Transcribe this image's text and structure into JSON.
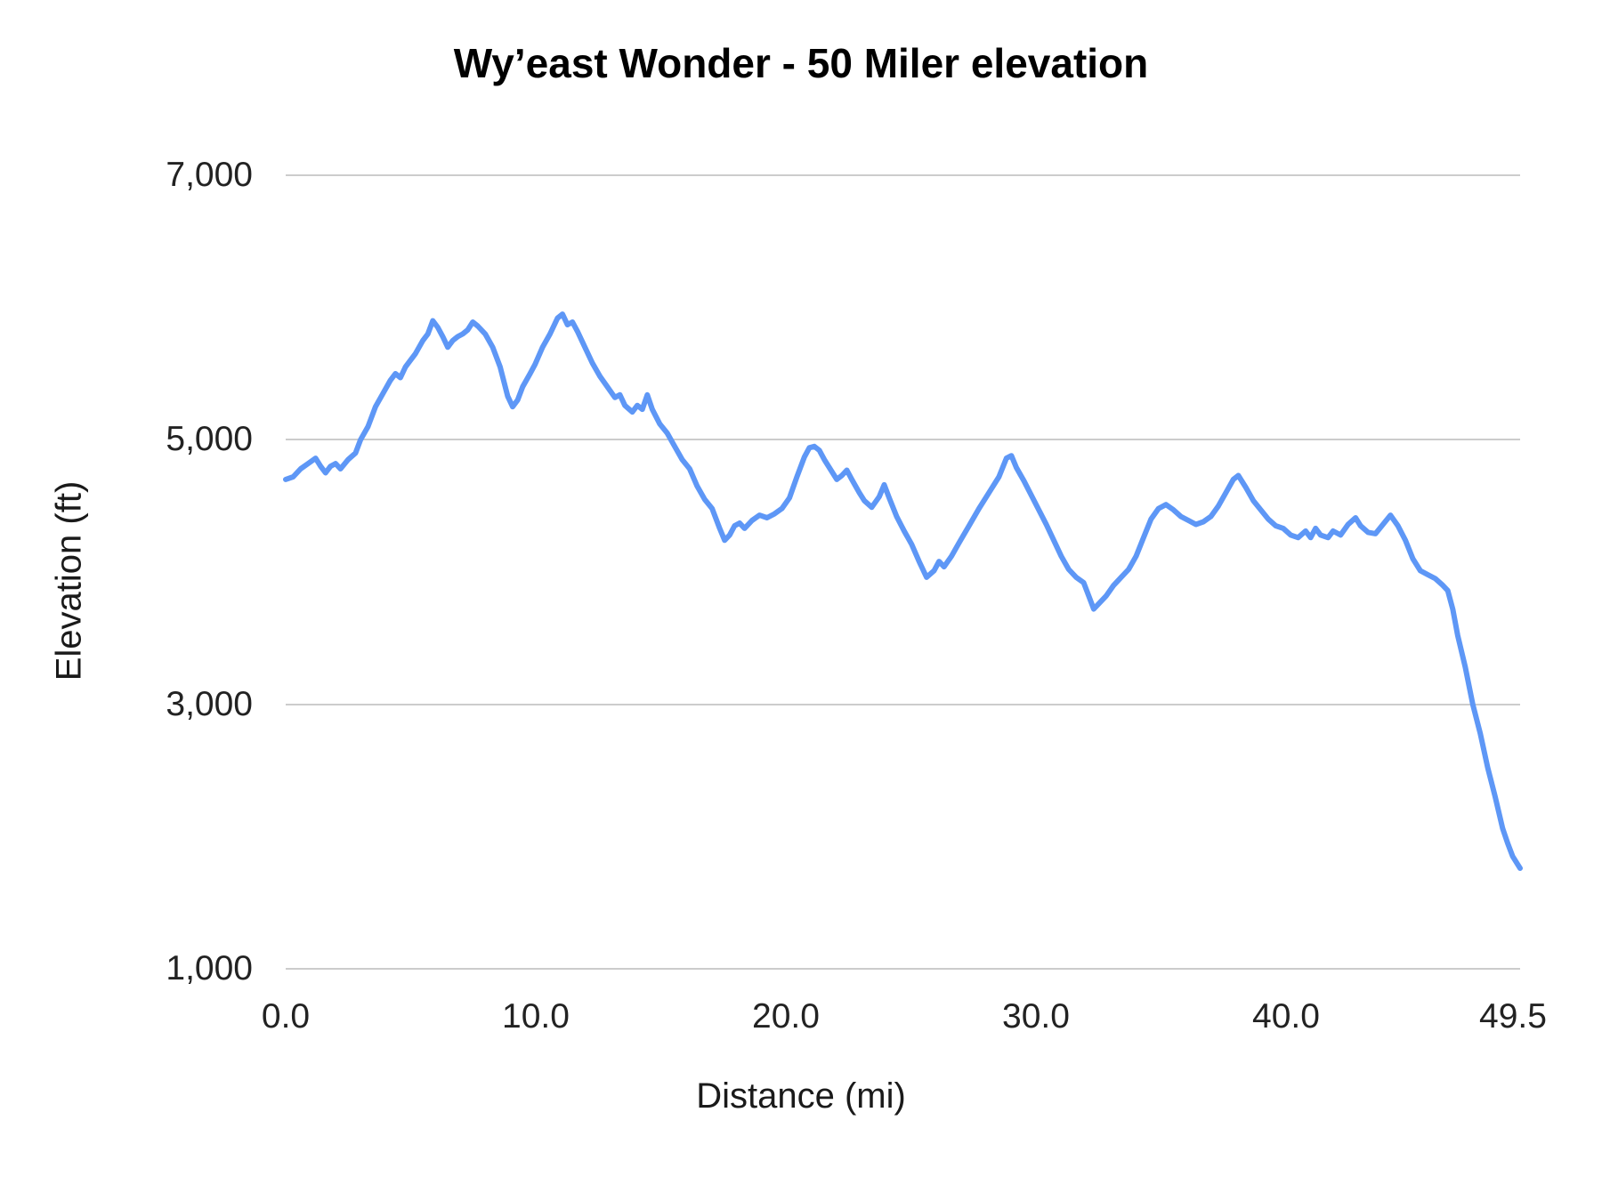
{
  "chart_data": {
    "type": "line",
    "title": "Wy’east Wonder - 50 Miler elevation",
    "xlabel": "Distance (mi)",
    "ylabel": "Elevation (ft)",
    "xlim": [
      0,
      49.5
    ],
    "ylim": [
      1000,
      7000
    ],
    "grid": "horizontal-only",
    "legend": "none",
    "line_color": "#5e97f6",
    "grid_color": "#cccccc",
    "text_color": "#222222",
    "x_ticks": [
      {
        "value": 0,
        "label": "0.0"
      },
      {
        "value": 10,
        "label": "10.0"
      },
      {
        "value": 20,
        "label": "20.0"
      },
      {
        "value": 30,
        "label": "30.0"
      },
      {
        "value": 40,
        "label": "40.0"
      },
      {
        "value": 49.5,
        "label": "49.5"
      }
    ],
    "y_ticks": [
      {
        "value": 7000,
        "label": "7,000"
      },
      {
        "value": 5000,
        "label": "5,000"
      },
      {
        "value": 3000,
        "label": "3,000"
      },
      {
        "value": 1000,
        "label": "1,000"
      }
    ],
    "series": [
      {
        "name": "Elevation",
        "points": [
          [
            0,
            4700
          ],
          [
            0.3,
            4720
          ],
          [
            0.6,
            4780
          ],
          [
            0.9,
            4820
          ],
          [
            1.2,
            4860
          ],
          [
            1.4,
            4800
          ],
          [
            1.6,
            4750
          ],
          [
            1.8,
            4800
          ],
          [
            2.0,
            4820
          ],
          [
            2.2,
            4780
          ],
          [
            2.5,
            4850
          ],
          [
            2.8,
            4900
          ],
          [
            3.0,
            5000
          ],
          [
            3.3,
            5100
          ],
          [
            3.6,
            5250
          ],
          [
            3.9,
            5350
          ],
          [
            4.2,
            5450
          ],
          [
            4.4,
            5500
          ],
          [
            4.6,
            5470
          ],
          [
            4.8,
            5550
          ],
          [
            5.0,
            5600
          ],
          [
            5.2,
            5650
          ],
          [
            5.5,
            5750
          ],
          [
            5.7,
            5800
          ],
          [
            5.9,
            5900
          ],
          [
            6.1,
            5850
          ],
          [
            6.3,
            5780
          ],
          [
            6.5,
            5700
          ],
          [
            6.7,
            5750
          ],
          [
            6.9,
            5780
          ],
          [
            7.1,
            5800
          ],
          [
            7.3,
            5830
          ],
          [
            7.5,
            5890
          ],
          [
            7.7,
            5860
          ],
          [
            8.0,
            5800
          ],
          [
            8.3,
            5700
          ],
          [
            8.6,
            5550
          ],
          [
            8.9,
            5330
          ],
          [
            9.1,
            5250
          ],
          [
            9.3,
            5300
          ],
          [
            9.5,
            5400
          ],
          [
            9.8,
            5500
          ],
          [
            10.0,
            5570
          ],
          [
            10.3,
            5700
          ],
          [
            10.6,
            5800
          ],
          [
            10.9,
            5920
          ],
          [
            11.1,
            5950
          ],
          [
            11.3,
            5870
          ],
          [
            11.5,
            5890
          ],
          [
            11.7,
            5820
          ],
          [
            12.0,
            5700
          ],
          [
            12.3,
            5580
          ],
          [
            12.6,
            5480
          ],
          [
            12.9,
            5400
          ],
          [
            13.2,
            5320
          ],
          [
            13.4,
            5340
          ],
          [
            13.6,
            5260
          ],
          [
            13.9,
            5210
          ],
          [
            14.1,
            5260
          ],
          [
            14.3,
            5230
          ],
          [
            14.5,
            5340
          ],
          [
            14.7,
            5230
          ],
          [
            15.0,
            5120
          ],
          [
            15.3,
            5050
          ],
          [
            15.6,
            4950
          ],
          [
            15.9,
            4850
          ],
          [
            16.2,
            4780
          ],
          [
            16.5,
            4650
          ],
          [
            16.8,
            4550
          ],
          [
            17.1,
            4480
          ],
          [
            17.4,
            4330
          ],
          [
            17.6,
            4240
          ],
          [
            17.8,
            4280
          ],
          [
            18.0,
            4350
          ],
          [
            18.2,
            4370
          ],
          [
            18.4,
            4330
          ],
          [
            18.7,
            4390
          ],
          [
            19.0,
            4430
          ],
          [
            19.3,
            4410
          ],
          [
            19.6,
            4440
          ],
          [
            19.9,
            4480
          ],
          [
            20.2,
            4560
          ],
          [
            20.5,
            4720
          ],
          [
            20.8,
            4870
          ],
          [
            21.0,
            4940
          ],
          [
            21.2,
            4950
          ],
          [
            21.4,
            4920
          ],
          [
            21.6,
            4850
          ],
          [
            21.9,
            4760
          ],
          [
            22.1,
            4700
          ],
          [
            22.3,
            4730
          ],
          [
            22.5,
            4770
          ],
          [
            22.7,
            4700
          ],
          [
            23.0,
            4600
          ],
          [
            23.2,
            4540
          ],
          [
            23.5,
            4490
          ],
          [
            23.8,
            4570
          ],
          [
            24.0,
            4660
          ],
          [
            24.2,
            4560
          ],
          [
            24.5,
            4420
          ],
          [
            24.8,
            4310
          ],
          [
            25.1,
            4210
          ],
          [
            25.4,
            4080
          ],
          [
            25.7,
            3960
          ],
          [
            26.0,
            4010
          ],
          [
            26.2,
            4080
          ],
          [
            26.4,
            4040
          ],
          [
            26.7,
            4120
          ],
          [
            27.0,
            4220
          ],
          [
            27.4,
            4350
          ],
          [
            27.8,
            4480
          ],
          [
            28.2,
            4600
          ],
          [
            28.6,
            4720
          ],
          [
            28.9,
            4860
          ],
          [
            29.1,
            4880
          ],
          [
            29.3,
            4790
          ],
          [
            29.6,
            4690
          ],
          [
            29.9,
            4580
          ],
          [
            30.2,
            4470
          ],
          [
            30.5,
            4360
          ],
          [
            30.8,
            4240
          ],
          [
            31.1,
            4120
          ],
          [
            31.4,
            4020
          ],
          [
            31.7,
            3960
          ],
          [
            32.0,
            3920
          ],
          [
            32.2,
            3820
          ],
          [
            32.4,
            3720
          ],
          [
            32.6,
            3760
          ],
          [
            32.9,
            3820
          ],
          [
            33.2,
            3900
          ],
          [
            33.5,
            3960
          ],
          [
            33.8,
            4020
          ],
          [
            34.1,
            4120
          ],
          [
            34.4,
            4260
          ],
          [
            34.7,
            4400
          ],
          [
            35.0,
            4480
          ],
          [
            35.3,
            4510
          ],
          [
            35.6,
            4470
          ],
          [
            35.9,
            4420
          ],
          [
            36.2,
            4390
          ],
          [
            36.5,
            4360
          ],
          [
            36.8,
            4380
          ],
          [
            37.1,
            4420
          ],
          [
            37.4,
            4500
          ],
          [
            37.7,
            4600
          ],
          [
            38.0,
            4700
          ],
          [
            38.2,
            4730
          ],
          [
            38.5,
            4640
          ],
          [
            38.8,
            4540
          ],
          [
            39.1,
            4470
          ],
          [
            39.4,
            4400
          ],
          [
            39.7,
            4350
          ],
          [
            40.0,
            4330
          ],
          [
            40.3,
            4280
          ],
          [
            40.6,
            4260
          ],
          [
            40.9,
            4310
          ],
          [
            41.1,
            4260
          ],
          [
            41.3,
            4330
          ],
          [
            41.5,
            4280
          ],
          [
            41.8,
            4260
          ],
          [
            42.0,
            4310
          ],
          [
            42.3,
            4280
          ],
          [
            42.6,
            4360
          ],
          [
            42.9,
            4410
          ],
          [
            43.1,
            4350
          ],
          [
            43.4,
            4300
          ],
          [
            43.7,
            4290
          ],
          [
            44.0,
            4360
          ],
          [
            44.3,
            4430
          ],
          [
            44.6,
            4350
          ],
          [
            44.9,
            4240
          ],
          [
            45.2,
            4100
          ],
          [
            45.5,
            4010
          ],
          [
            45.8,
            3980
          ],
          [
            46.1,
            3950
          ],
          [
            46.4,
            3900
          ],
          [
            46.6,
            3860
          ],
          [
            46.8,
            3720
          ],
          [
            47.0,
            3520
          ],
          [
            47.3,
            3280
          ],
          [
            47.6,
            3000
          ],
          [
            47.9,
            2780
          ],
          [
            48.2,
            2520
          ],
          [
            48.5,
            2300
          ],
          [
            48.8,
            2060
          ],
          [
            49.0,
            1950
          ],
          [
            49.2,
            1850
          ],
          [
            49.4,
            1790
          ],
          [
            49.5,
            1760
          ]
        ]
      }
    ]
  }
}
